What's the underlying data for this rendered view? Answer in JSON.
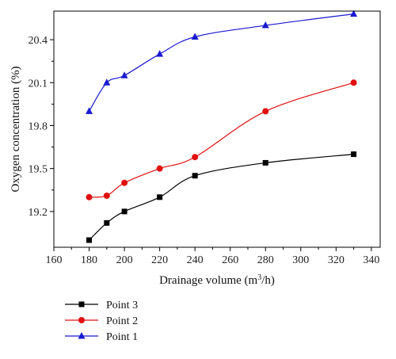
{
  "chart_data": {
    "type": "line",
    "xlabel": "Drainage volume (m³/h)",
    "xlabel_main": "Drainage volume (m",
    "xlabel_sup": "3",
    "xlabel_tail": "/h)",
    "ylabel": "Oxygen concentration (%)",
    "xlim": [
      160,
      345
    ],
    "ylim": [
      18.95,
      20.6
    ],
    "x_ticks": [
      160,
      180,
      200,
      220,
      240,
      260,
      280,
      300,
      320,
      340
    ],
    "y_ticks": [
      19.2,
      19.5,
      19.8,
      20.1,
      20.4
    ],
    "y_tick_labels": [
      "19.2",
      "19.5",
      "19.8",
      "20.1",
      "20.4"
    ],
    "legend_position": "bottom-left",
    "series": [
      {
        "name": "Point 3",
        "color": "#000000",
        "marker": "square",
        "x": [
          180,
          190,
          200,
          220,
          240,
          280,
          330
        ],
        "y": [
          19.0,
          19.12,
          19.2,
          19.3,
          19.45,
          19.54,
          19.6
        ]
      },
      {
        "name": "Point 2",
        "color": "#e01010",
        "marker": "circle",
        "x": [
          180,
          190,
          200,
          220,
          240,
          280,
          330
        ],
        "y": [
          19.3,
          19.31,
          19.4,
          19.5,
          19.58,
          19.9,
          20.1
        ]
      },
      {
        "name": "Point 1",
        "color": "#1a1ad0",
        "marker": "triangle",
        "x": [
          180,
          190,
          200,
          220,
          240,
          280,
          330
        ],
        "y": [
          19.9,
          20.1,
          20.15,
          20.3,
          20.42,
          20.5,
          20.58
        ]
      }
    ]
  }
}
